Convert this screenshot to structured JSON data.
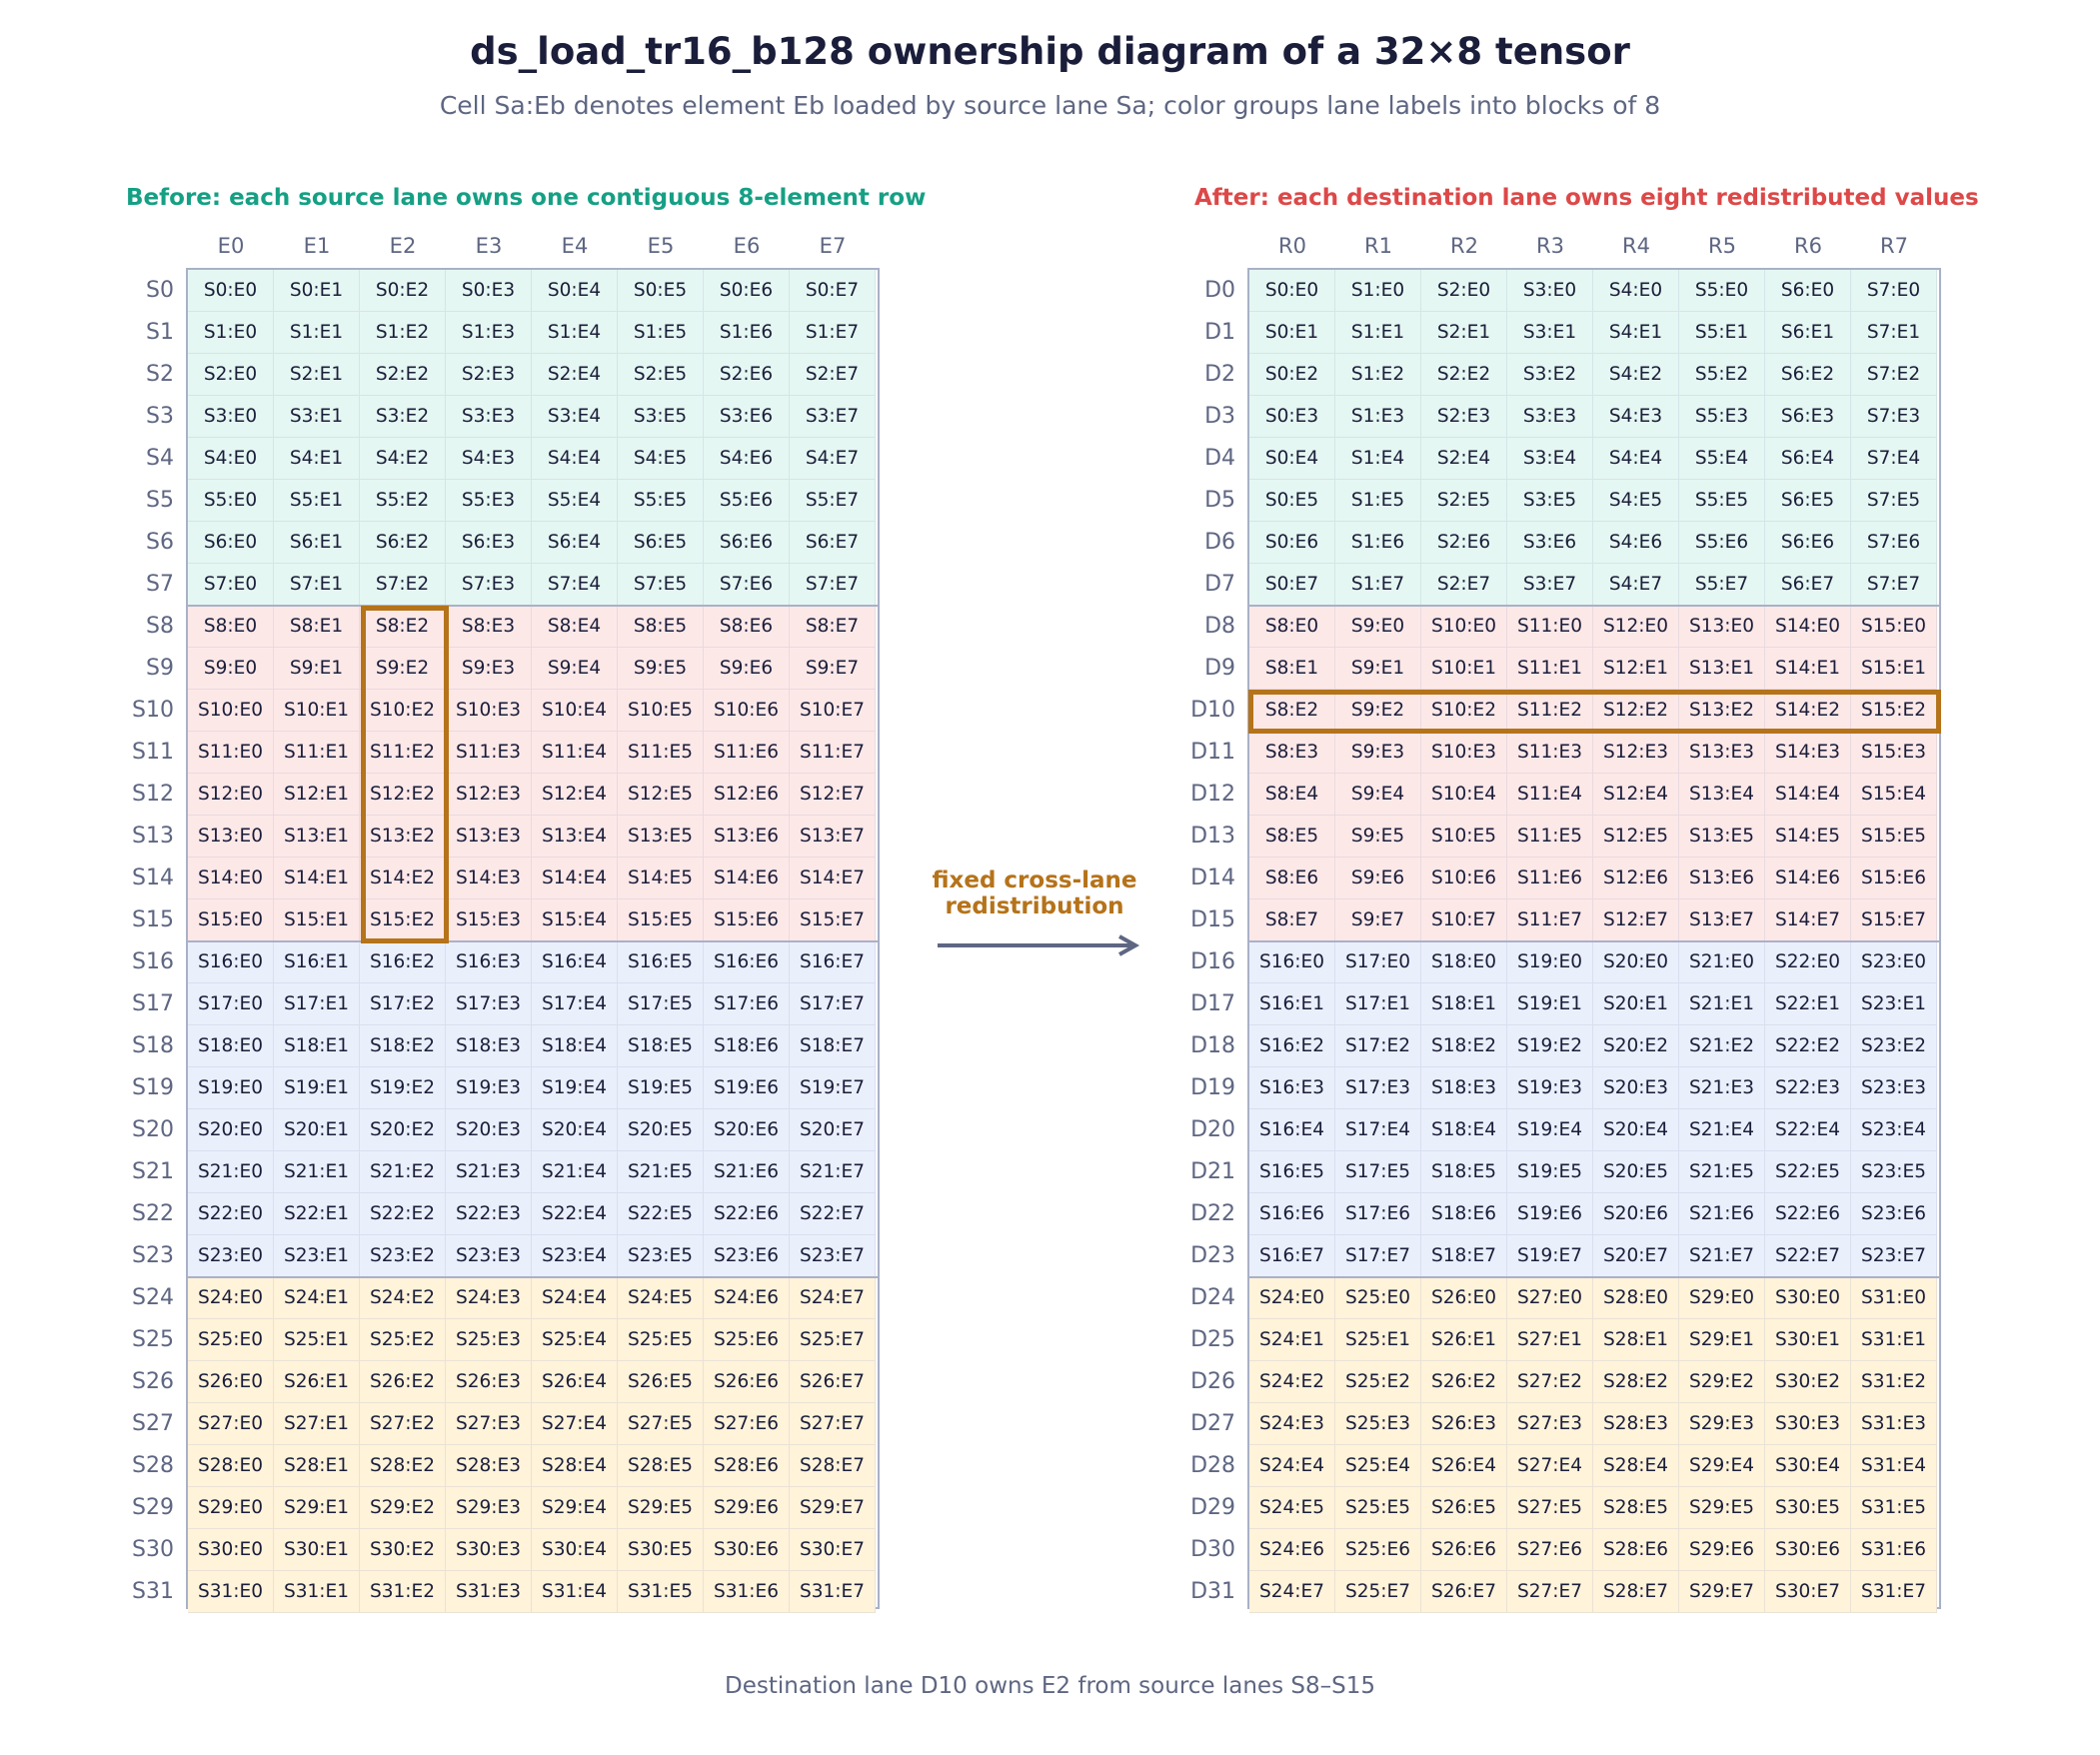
{
  "title": "ds_load_tr16_b128 ownership diagram of a 32×8 tensor",
  "subtitle": "Cell Sa:Eb denotes element Eb loaded by source lane Sa; color groups lane labels into blocks of 8",
  "left_panel": {
    "title": "Before: each source lane owns one contiguous 8-element row",
    "columns": [
      "E0",
      "E1",
      "E2",
      "E3",
      "E4",
      "E5",
      "E6",
      "E7"
    ],
    "row_labels": [
      "S0",
      "S1",
      "S2",
      "S3",
      "S4",
      "S5",
      "S6",
      "S7",
      "S8",
      "S9",
      "S10",
      "S11",
      "S12",
      "S13",
      "S14",
      "S15",
      "S16",
      "S17",
      "S18",
      "S19",
      "S20",
      "S21",
      "S22",
      "S23",
      "S24",
      "S25",
      "S26",
      "S27",
      "S28",
      "S29",
      "S30",
      "S31"
    ],
    "rows": [
      [
        "S0:E0",
        "S0:E1",
        "S0:E2",
        "S0:E3",
        "S0:E4",
        "S0:E5",
        "S0:E6",
        "S0:E7"
      ],
      [
        "S1:E0",
        "S1:E1",
        "S1:E2",
        "S1:E3",
        "S1:E4",
        "S1:E5",
        "S1:E6",
        "S1:E7"
      ],
      [
        "S2:E0",
        "S2:E1",
        "S2:E2",
        "S2:E3",
        "S2:E4",
        "S2:E5",
        "S2:E6",
        "S2:E7"
      ],
      [
        "S3:E0",
        "S3:E1",
        "S3:E2",
        "S3:E3",
        "S3:E4",
        "S3:E5",
        "S3:E6",
        "S3:E7"
      ],
      [
        "S4:E0",
        "S4:E1",
        "S4:E2",
        "S4:E3",
        "S4:E4",
        "S4:E5",
        "S4:E6",
        "S4:E7"
      ],
      [
        "S5:E0",
        "S5:E1",
        "S5:E2",
        "S5:E3",
        "S5:E4",
        "S5:E5",
        "S5:E6",
        "S5:E7"
      ],
      [
        "S6:E0",
        "S6:E1",
        "S6:E2",
        "S6:E3",
        "S6:E4",
        "S6:E5",
        "S6:E6",
        "S6:E7"
      ],
      [
        "S7:E0",
        "S7:E1",
        "S7:E2",
        "S7:E3",
        "S7:E4",
        "S7:E5",
        "S7:E6",
        "S7:E7"
      ],
      [
        "S8:E0",
        "S8:E1",
        "S8:E2",
        "S8:E3",
        "S8:E4",
        "S8:E5",
        "S8:E6",
        "S8:E7"
      ],
      [
        "S9:E0",
        "S9:E1",
        "S9:E2",
        "S9:E3",
        "S9:E4",
        "S9:E5",
        "S9:E6",
        "S9:E7"
      ],
      [
        "S10:E0",
        "S10:E1",
        "S10:E2",
        "S10:E3",
        "S10:E4",
        "S10:E5",
        "S10:E6",
        "S10:E7"
      ],
      [
        "S11:E0",
        "S11:E1",
        "S11:E2",
        "S11:E3",
        "S11:E4",
        "S11:E5",
        "S11:E6",
        "S11:E7"
      ],
      [
        "S12:E0",
        "S12:E1",
        "S12:E2",
        "S12:E3",
        "S12:E4",
        "S12:E5",
        "S12:E6",
        "S12:E7"
      ],
      [
        "S13:E0",
        "S13:E1",
        "S13:E2",
        "S13:E3",
        "S13:E4",
        "S13:E5",
        "S13:E6",
        "S13:E7"
      ],
      [
        "S14:E0",
        "S14:E1",
        "S14:E2",
        "S14:E3",
        "S14:E4",
        "S14:E5",
        "S14:E6",
        "S14:E7"
      ],
      [
        "S15:E0",
        "S15:E1",
        "S15:E2",
        "S15:E3",
        "S15:E4",
        "S15:E5",
        "S15:E6",
        "S15:E7"
      ],
      [
        "S16:E0",
        "S16:E1",
        "S16:E2",
        "S16:E3",
        "S16:E4",
        "S16:E5",
        "S16:E6",
        "S16:E7"
      ],
      [
        "S17:E0",
        "S17:E1",
        "S17:E2",
        "S17:E3",
        "S17:E4",
        "S17:E5",
        "S17:E6",
        "S17:E7"
      ],
      [
        "S18:E0",
        "S18:E1",
        "S18:E2",
        "S18:E3",
        "S18:E4",
        "S18:E5",
        "S18:E6",
        "S18:E7"
      ],
      [
        "S19:E0",
        "S19:E1",
        "S19:E2",
        "S19:E3",
        "S19:E4",
        "S19:E5",
        "S19:E6",
        "S19:E7"
      ],
      [
        "S20:E0",
        "S20:E1",
        "S20:E2",
        "S20:E3",
        "S20:E4",
        "S20:E5",
        "S20:E6",
        "S20:E7"
      ],
      [
        "S21:E0",
        "S21:E1",
        "S21:E2",
        "S21:E3",
        "S21:E4",
        "S21:E5",
        "S21:E6",
        "S21:E7"
      ],
      [
        "S22:E0",
        "S22:E1",
        "S22:E2",
        "S22:E3",
        "S22:E4",
        "S22:E5",
        "S22:E6",
        "S22:E7"
      ],
      [
        "S23:E0",
        "S23:E1",
        "S23:E2",
        "S23:E3",
        "S23:E4",
        "S23:E5",
        "S23:E6",
        "S23:E7"
      ],
      [
        "S24:E0",
        "S24:E1",
        "S24:E2",
        "S24:E3",
        "S24:E4",
        "S24:E5",
        "S24:E6",
        "S24:E7"
      ],
      [
        "S25:E0",
        "S25:E1",
        "S25:E2",
        "S25:E3",
        "S25:E4",
        "S25:E5",
        "S25:E6",
        "S25:E7"
      ],
      [
        "S26:E0",
        "S26:E1",
        "S26:E2",
        "S26:E3",
        "S26:E4",
        "S26:E5",
        "S26:E6",
        "S26:E7"
      ],
      [
        "S27:E0",
        "S27:E1",
        "S27:E2",
        "S27:E3",
        "S27:E4",
        "S27:E5",
        "S27:E6",
        "S27:E7"
      ],
      [
        "S28:E0",
        "S28:E1",
        "S28:E2",
        "S28:E3",
        "S28:E4",
        "S28:E5",
        "S28:E6",
        "S28:E7"
      ],
      [
        "S29:E0",
        "S29:E1",
        "S29:E2",
        "S29:E3",
        "S29:E4",
        "S29:E5",
        "S29:E6",
        "S29:E7"
      ],
      [
        "S30:E0",
        "S30:E1",
        "S30:E2",
        "S30:E3",
        "S30:E4",
        "S30:E5",
        "S30:E6",
        "S30:E7"
      ],
      [
        "S31:E0",
        "S31:E1",
        "S31:E2",
        "S31:E3",
        "S31:E4",
        "S31:E5",
        "S31:E6",
        "S31:E7"
      ]
    ]
  },
  "right_panel": {
    "title": "After: each destination lane owns eight redistributed values",
    "columns": [
      "R0",
      "R1",
      "R2",
      "R3",
      "R4",
      "R5",
      "R6",
      "R7"
    ],
    "row_labels": [
      "D0",
      "D1",
      "D2",
      "D3",
      "D4",
      "D5",
      "D6",
      "D7",
      "D8",
      "D9",
      "D10",
      "D11",
      "D12",
      "D13",
      "D14",
      "D15",
      "D16",
      "D17",
      "D18",
      "D19",
      "D20",
      "D21",
      "D22",
      "D23",
      "D24",
      "D25",
      "D26",
      "D27",
      "D28",
      "D29",
      "D30",
      "D31"
    ],
    "rows": [
      [
        "S0:E0",
        "S1:E0",
        "S2:E0",
        "S3:E0",
        "S4:E0",
        "S5:E0",
        "S6:E0",
        "S7:E0"
      ],
      [
        "S0:E1",
        "S1:E1",
        "S2:E1",
        "S3:E1",
        "S4:E1",
        "S5:E1",
        "S6:E1",
        "S7:E1"
      ],
      [
        "S0:E2",
        "S1:E2",
        "S2:E2",
        "S3:E2",
        "S4:E2",
        "S5:E2",
        "S6:E2",
        "S7:E2"
      ],
      [
        "S0:E3",
        "S1:E3",
        "S2:E3",
        "S3:E3",
        "S4:E3",
        "S5:E3",
        "S6:E3",
        "S7:E3"
      ],
      [
        "S0:E4",
        "S1:E4",
        "S2:E4",
        "S3:E4",
        "S4:E4",
        "S5:E4",
        "S6:E4",
        "S7:E4"
      ],
      [
        "S0:E5",
        "S1:E5",
        "S2:E5",
        "S3:E5",
        "S4:E5",
        "S5:E5",
        "S6:E5",
        "S7:E5"
      ],
      [
        "S0:E6",
        "S1:E6",
        "S2:E6",
        "S3:E6",
        "S4:E6",
        "S5:E6",
        "S6:E6",
        "S7:E6"
      ],
      [
        "S0:E7",
        "S1:E7",
        "S2:E7",
        "S3:E7",
        "S4:E7",
        "S5:E7",
        "S6:E7",
        "S7:E7"
      ],
      [
        "S8:E0",
        "S9:E0",
        "S10:E0",
        "S11:E0",
        "S12:E0",
        "S13:E0",
        "S14:E0",
        "S15:E0"
      ],
      [
        "S8:E1",
        "S9:E1",
        "S10:E1",
        "S11:E1",
        "S12:E1",
        "S13:E1",
        "S14:E1",
        "S15:E1"
      ],
      [
        "S8:E2",
        "S9:E2",
        "S10:E2",
        "S11:E2",
        "S12:E2",
        "S13:E2",
        "S14:E2",
        "S15:E2"
      ],
      [
        "S8:E3",
        "S9:E3",
        "S10:E3",
        "S11:E3",
        "S12:E3",
        "S13:E3",
        "S14:E3",
        "S15:E3"
      ],
      [
        "S8:E4",
        "S9:E4",
        "S10:E4",
        "S11:E4",
        "S12:E4",
        "S13:E4",
        "S14:E4",
        "S15:E4"
      ],
      [
        "S8:E5",
        "S9:E5",
        "S10:E5",
        "S11:E5",
        "S12:E5",
        "S13:E5",
        "S14:E5",
        "S15:E5"
      ],
      [
        "S8:E6",
        "S9:E6",
        "S10:E6",
        "S11:E6",
        "S12:E6",
        "S13:E6",
        "S14:E6",
        "S15:E6"
      ],
      [
        "S8:E7",
        "S9:E7",
        "S10:E7",
        "S11:E7",
        "S12:E7",
        "S13:E7",
        "S14:E7",
        "S15:E7"
      ],
      [
        "S16:E0",
        "S17:E0",
        "S18:E0",
        "S19:E0",
        "S20:E0",
        "S21:E0",
        "S22:E0",
        "S23:E0"
      ],
      [
        "S16:E1",
        "S17:E1",
        "S18:E1",
        "S19:E1",
        "S20:E1",
        "S21:E1",
        "S22:E1",
        "S23:E1"
      ],
      [
        "S16:E2",
        "S17:E2",
        "S18:E2",
        "S19:E2",
        "S20:E2",
        "S21:E2",
        "S22:E2",
        "S23:E2"
      ],
      [
        "S16:E3",
        "S17:E3",
        "S18:E3",
        "S19:E3",
        "S20:E3",
        "S21:E3",
        "S22:E3",
        "S23:E3"
      ],
      [
        "S16:E4",
        "S17:E4",
        "S18:E4",
        "S19:E4",
        "S20:E4",
        "S21:E4",
        "S22:E4",
        "S23:E4"
      ],
      [
        "S16:E5",
        "S17:E5",
        "S18:E5",
        "S19:E5",
        "S20:E5",
        "S21:E5",
        "S22:E5",
        "S23:E5"
      ],
      [
        "S16:E6",
        "S17:E6",
        "S18:E6",
        "S19:E6",
        "S20:E6",
        "S21:E6",
        "S22:E6",
        "S23:E6"
      ],
      [
        "S16:E7",
        "S17:E7",
        "S18:E7",
        "S19:E7",
        "S20:E7",
        "S21:E7",
        "S22:E7",
        "S23:E7"
      ],
      [
        "S24:E0",
        "S25:E0",
        "S26:E0",
        "S27:E0",
        "S28:E0",
        "S29:E0",
        "S30:E0",
        "S31:E0"
      ],
      [
        "S24:E1",
        "S25:E1",
        "S26:E1",
        "S27:E1",
        "S28:E1",
        "S29:E1",
        "S30:E1",
        "S31:E1"
      ],
      [
        "S24:E2",
        "S25:E2",
        "S26:E2",
        "S27:E2",
        "S28:E2",
        "S29:E2",
        "S30:E2",
        "S31:E2"
      ],
      [
        "S24:E3",
        "S25:E3",
        "S26:E3",
        "S27:E3",
        "S28:E3",
        "S29:E3",
        "S30:E3",
        "S31:E3"
      ],
      [
        "S24:E4",
        "S25:E4",
        "S26:E4",
        "S27:E4",
        "S28:E4",
        "S29:E4",
        "S30:E4",
        "S31:E4"
      ],
      [
        "S24:E5",
        "S25:E5",
        "S26:E5",
        "S27:E5",
        "S28:E5",
        "S29:E5",
        "S30:E5",
        "S31:E5"
      ],
      [
        "S24:E6",
        "S25:E6",
        "S26:E6",
        "S27:E6",
        "S28:E6",
        "S29:E6",
        "S30:E6",
        "S31:E6"
      ],
      [
        "S24:E7",
        "S25:E7",
        "S26:E7",
        "S27:E7",
        "S28:E7",
        "S29:E7",
        "S30:E7",
        "S31:E7"
      ]
    ]
  },
  "group_colors": [
    "#e5f7f2",
    "#fde8e8",
    "#eaeffc",
    "#fff3da"
  ],
  "colors": {
    "title": "#1b1e3a",
    "muted": "#5e6682",
    "left_title": "#15a084",
    "right_title": "#dd4848",
    "highlight": "#b5731a",
    "grid_border": "#a9b1c7",
    "arrow": "#5e6682"
  },
  "arrow_label_line1": "fixed cross-lane",
  "arrow_label_line2": "redistribution",
  "arrow_icon": "right-arrow-icon",
  "highlight": {
    "left_column": "E2",
    "left_rows": [
      "S8",
      "S9",
      "S10",
      "S11",
      "S12",
      "S13",
      "S14",
      "S15"
    ],
    "right_row": "D10"
  },
  "footer": "Destination lane D10 owns E2 from source lanes S8–S15"
}
